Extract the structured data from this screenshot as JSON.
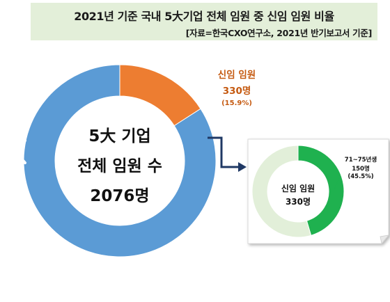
{
  "title": "2021년 기준 국내 5大기업 전체 임원 중 신임 임원 비율",
  "source": "[자료=한국CXO연구소, 2021년 반기보고서 기준]",
  "colors": {
    "total": "#5b9bd5",
    "new": "#ed7d31",
    "young": "#1fb14f",
    "young_rest": "#e2efd9",
    "label_orange": "#c55a11",
    "arrow": "#1f3864",
    "title_bg": "#e3efd9"
  },
  "nav": {
    "prev_icon": "chevron-left-icon"
  },
  "chart_data": [
    {
      "type": "pie",
      "center_label": [
        "5大 기업",
        "전체 임원 수",
        "2076명"
      ],
      "total": 2076,
      "slices": [
        {
          "name": "신임 임원",
          "value": 330,
          "percent": 15.9,
          "value_label": "330명",
          "percent_label": "(15.9%)"
        },
        {
          "name": "",
          "value": 1746,
          "percent": 84.1
        }
      ]
    },
    {
      "type": "pie",
      "center_label": [
        "신임 임원",
        "330명"
      ],
      "total": 330,
      "slices": [
        {
          "name": "71~75년생",
          "value": 150,
          "percent": 45.5,
          "value_label": "150명",
          "percent_label": "(45.5%)"
        },
        {
          "name": "",
          "value": 180,
          "percent": 54.5
        }
      ]
    }
  ]
}
